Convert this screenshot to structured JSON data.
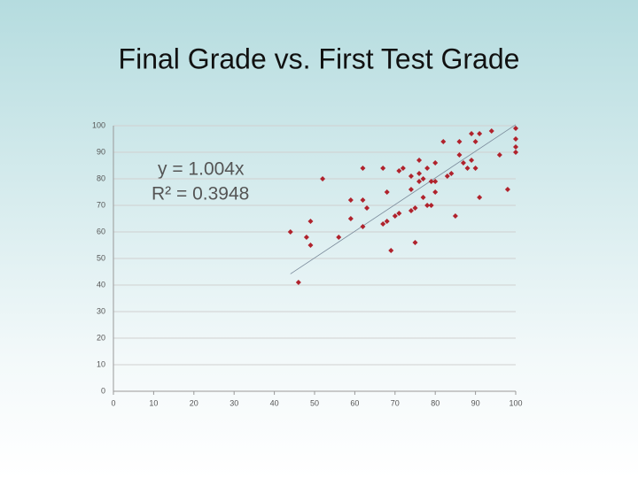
{
  "chart_data": {
    "type": "scatter",
    "title": "Final Grade vs. First Test Grade",
    "annotations": [
      "y = 1.004x",
      "R² = 0.3948"
    ],
    "color": "#b0222c",
    "x": [
      44,
      46,
      48,
      49,
      49,
      52,
      56,
      59,
      59,
      62,
      62,
      62,
      63,
      67,
      67,
      68,
      68,
      69,
      70,
      71,
      71,
      72,
      74,
      74,
      74,
      75,
      75,
      76,
      76,
      76,
      77,
      77,
      78,
      78,
      79,
      79,
      80,
      80,
      80,
      82,
      83,
      84,
      85,
      86,
      86,
      87,
      88,
      89,
      89,
      90,
      90,
      91,
      91,
      94,
      96,
      98,
      100,
      100,
      100,
      100
    ],
    "values": [
      60,
      41,
      58,
      64,
      55,
      80,
      58,
      72,
      65,
      84,
      72,
      62,
      69,
      84,
      63,
      75,
      64,
      53,
      66,
      67,
      83,
      84,
      81,
      76,
      68,
      56,
      69,
      87,
      79,
      82,
      80,
      73,
      84,
      70,
      79,
      70,
      86,
      79,
      75,
      94,
      81,
      82,
      66,
      94,
      89,
      86,
      84,
      97,
      87,
      94,
      84,
      97,
      73,
      98,
      89,
      76,
      99,
      95,
      92,
      90
    ],
    "trendline": {
      "slope": 1.004,
      "xlim": [
        44,
        100
      ]
    },
    "xlim": [
      0,
      100
    ],
    "xticks": [
      0,
      10,
      20,
      30,
      40,
      50,
      60,
      70,
      80,
      90,
      100
    ],
    "ylim": [
      0,
      100
    ],
    "yticks": [
      0,
      10,
      20,
      30,
      40,
      50,
      60,
      70,
      80,
      90,
      100
    ],
    "grid": true
  }
}
